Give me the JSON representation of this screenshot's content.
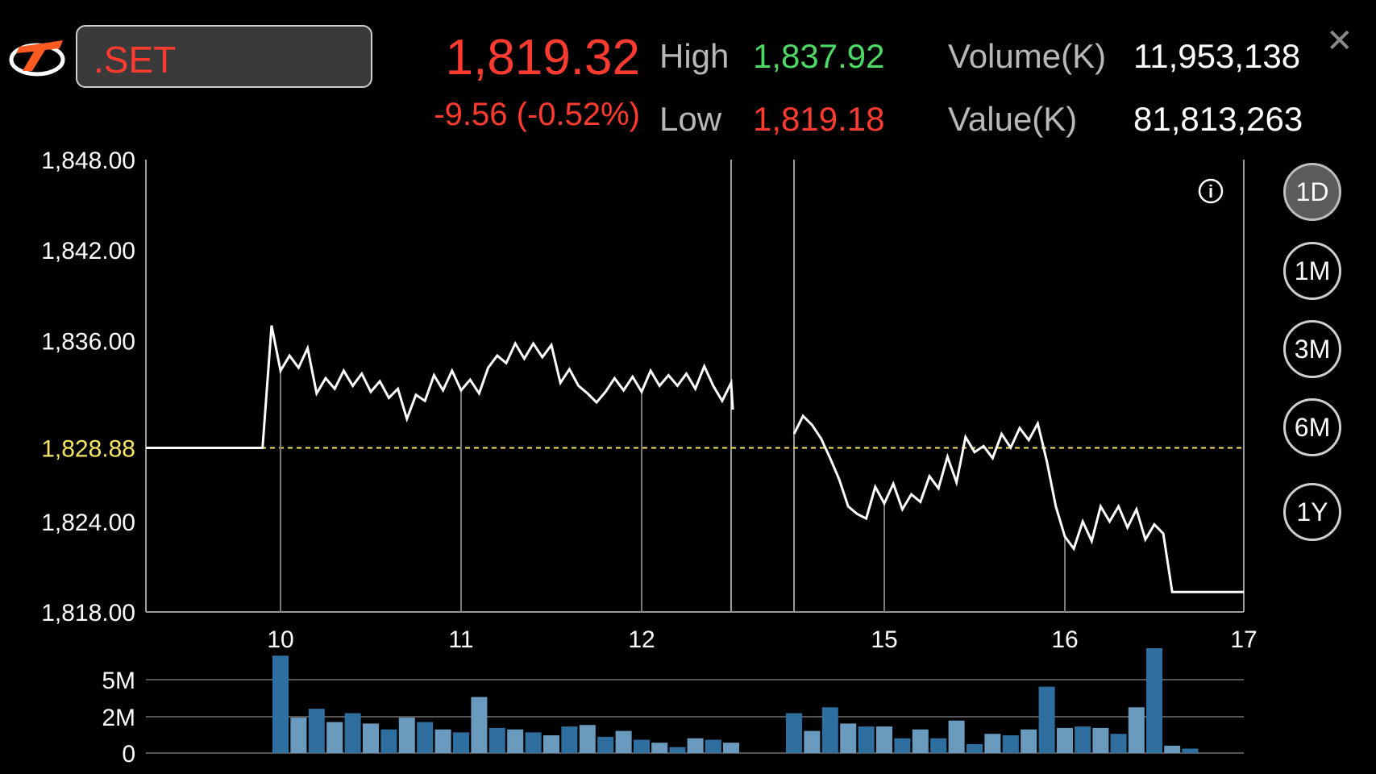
{
  "symbol": ".SET",
  "quote": {
    "last": "1,819.32",
    "change": "-9.56 (-0.52%)",
    "high_label": "High",
    "high": "1,837.92",
    "low_label": "Low",
    "low": "1,819.18",
    "volume_label": "Volume(K)",
    "volume": "11,953,138",
    "value_label": "Value(K)",
    "value": "81,813,263"
  },
  "close_icon": "close-icon",
  "info_icon": "info-icon",
  "timeframes": [
    {
      "label": "1D",
      "active": true
    },
    {
      "label": "1M",
      "active": false
    },
    {
      "label": "3M",
      "active": false
    },
    {
      "label": "6M",
      "active": false
    },
    {
      "label": "1Y",
      "active": false
    }
  ],
  "colors": {
    "up": "#4cd964",
    "down": "#ff3b30",
    "prev_close": "#f5e663",
    "volume_bar": "#2f6f9f",
    "volume_bar_light": "#6a9bbf"
  },
  "chart_data": [
    {
      "type": "line",
      "title": "",
      "ylim": [
        1818,
        1848
      ],
      "y_ticks": [
        "1,848.00",
        "1,842.00",
        "1,836.00",
        "1,824.00",
        "1,818.00"
      ],
      "prev_close": 1828.88,
      "prev_close_label": "1,828.88",
      "x_ticks": [
        {
          "x": 10,
          "label": "10"
        },
        {
          "x": 11,
          "label": "11"
        },
        {
          "x": 12,
          "label": "12"
        },
        {
          "x": 15,
          "label": "15"
        },
        {
          "x": 16,
          "label": "16"
        },
        {
          "x": 17,
          "label": "17"
        }
      ],
      "sessions": [
        {
          "name": "morning",
          "points": [
            [
              9.25,
              1828.88
            ],
            [
              9.9,
              1828.88
            ],
            [
              9.95,
              1837.0
            ],
            [
              10.0,
              1834.0
            ],
            [
              10.05,
              1835.0
            ],
            [
              10.1,
              1834.2
            ],
            [
              10.15,
              1835.5
            ],
            [
              10.2,
              1832.5
            ],
            [
              10.25,
              1833.5
            ],
            [
              10.3,
              1832.8
            ],
            [
              10.35,
              1834.0
            ],
            [
              10.4,
              1833.0
            ],
            [
              10.45,
              1833.8
            ],
            [
              10.5,
              1832.6
            ],
            [
              10.55,
              1833.3
            ],
            [
              10.6,
              1832.2
            ],
            [
              10.65,
              1832.8
            ],
            [
              10.7,
              1830.8
            ],
            [
              10.75,
              1832.4
            ],
            [
              10.8,
              1832.0
            ],
            [
              10.85,
              1833.7
            ],
            [
              10.9,
              1832.7
            ],
            [
              10.95,
              1834.0
            ],
            [
              11.0,
              1832.7
            ],
            [
              11.05,
              1833.4
            ],
            [
              11.1,
              1832.5
            ],
            [
              11.15,
              1834.2
            ],
            [
              11.2,
              1835.0
            ],
            [
              11.25,
              1834.5
            ],
            [
              11.3,
              1835.8
            ],
            [
              11.35,
              1834.8
            ],
            [
              11.4,
              1835.8
            ],
            [
              11.45,
              1834.9
            ],
            [
              11.5,
              1835.7
            ],
            [
              11.55,
              1833.2
            ],
            [
              11.6,
              1834.1
            ],
            [
              11.65,
              1833.0
            ],
            [
              11.7,
              1832.5
            ],
            [
              11.75,
              1831.9
            ],
            [
              11.8,
              1832.6
            ],
            [
              11.85,
              1833.5
            ],
            [
              11.9,
              1832.7
            ],
            [
              11.95,
              1833.6
            ],
            [
              12.0,
              1832.6
            ],
            [
              12.05,
              1834.0
            ],
            [
              12.1,
              1833.0
            ],
            [
              12.15,
              1833.7
            ],
            [
              12.2,
              1833.0
            ],
            [
              12.25,
              1833.8
            ],
            [
              12.3,
              1832.8
            ],
            [
              12.35,
              1834.3
            ],
            [
              12.4,
              1833.0
            ],
            [
              12.45,
              1832.0
            ],
            [
              12.5,
              1833.2
            ],
            [
              12.55,
              1831.5
            ],
            [
              12.5,
              1831.5
            ]
          ]
        },
        {
          "name": "afternoon",
          "points": [
            [
              14.5,
              1829.8
            ],
            [
              14.55,
              1831.0
            ],
            [
              14.6,
              1830.4
            ],
            [
              14.65,
              1829.5
            ],
            [
              14.7,
              1828.2
            ],
            [
              14.75,
              1826.8
            ],
            [
              14.8,
              1825.0
            ],
            [
              14.85,
              1824.5
            ],
            [
              14.9,
              1824.2
            ],
            [
              14.95,
              1826.3
            ],
            [
              15.0,
              1825.2
            ],
            [
              15.05,
              1826.5
            ],
            [
              15.1,
              1824.8
            ],
            [
              15.15,
              1825.8
            ],
            [
              15.2,
              1825.3
            ],
            [
              15.25,
              1827.0
            ],
            [
              15.3,
              1826.2
            ],
            [
              15.35,
              1828.3
            ],
            [
              15.4,
              1826.6
            ],
            [
              15.45,
              1829.6
            ],
            [
              15.5,
              1828.6
            ],
            [
              15.55,
              1829.0
            ],
            [
              15.6,
              1828.2
            ],
            [
              15.65,
              1829.8
            ],
            [
              15.7,
              1828.9
            ],
            [
              15.75,
              1830.2
            ],
            [
              15.8,
              1829.4
            ],
            [
              15.85,
              1830.5
            ],
            [
              15.9,
              1828.0
            ],
            [
              15.95,
              1825.0
            ],
            [
              16.0,
              1823.0
            ],
            [
              16.05,
              1822.2
            ],
            [
              16.1,
              1824.0
            ],
            [
              16.15,
              1822.7
            ],
            [
              16.2,
              1825.0
            ],
            [
              16.25,
              1824.0
            ],
            [
              16.3,
              1825.0
            ],
            [
              16.35,
              1823.6
            ],
            [
              16.4,
              1824.8
            ],
            [
              16.45,
              1822.8
            ],
            [
              16.5,
              1823.8
            ],
            [
              16.55,
              1823.2
            ],
            [
              16.6,
              1819.32
            ],
            [
              16.85,
              1819.32
            ],
            [
              17.0,
              1819.32
            ]
          ]
        }
      ]
    },
    {
      "type": "bar",
      "title": "",
      "ylim": [
        0,
        6.5
      ],
      "y_ticks": [
        {
          "v": 5,
          "label": "5M"
        },
        {
          "v": 2,
          "label": "2M"
        },
        {
          "v": 0,
          "label": "0"
        }
      ],
      "bars": [
        [
          10.0,
          6.6,
          1
        ],
        [
          10.1,
          2.4,
          0
        ],
        [
          10.2,
          3.0,
          1
        ],
        [
          10.3,
          2.1,
          0
        ],
        [
          10.4,
          2.7,
          1
        ],
        [
          10.5,
          2.0,
          0
        ],
        [
          10.6,
          1.6,
          1
        ],
        [
          10.7,
          2.4,
          0
        ],
        [
          10.8,
          2.1,
          1
        ],
        [
          10.9,
          1.6,
          0
        ],
        [
          11.0,
          1.4,
          1
        ],
        [
          11.1,
          3.8,
          0
        ],
        [
          11.2,
          1.7,
          1
        ],
        [
          11.3,
          1.6,
          0
        ],
        [
          11.4,
          1.4,
          1
        ],
        [
          11.5,
          1.2,
          0
        ],
        [
          11.6,
          1.8,
          1
        ],
        [
          11.7,
          1.9,
          0
        ],
        [
          11.8,
          1.1,
          1
        ],
        [
          11.9,
          1.5,
          0
        ],
        [
          12.0,
          0.9,
          1
        ],
        [
          12.1,
          0.7,
          0
        ],
        [
          12.2,
          0.4,
          1
        ],
        [
          12.3,
          1.0,
          0
        ],
        [
          12.4,
          0.9,
          1
        ],
        [
          12.5,
          0.7,
          0
        ],
        [
          14.5,
          2.7,
          1
        ],
        [
          14.6,
          1.5,
          0
        ],
        [
          14.7,
          3.1,
          1
        ],
        [
          14.8,
          2.0,
          0
        ],
        [
          14.9,
          1.8,
          1
        ],
        [
          15.0,
          1.8,
          0
        ],
        [
          15.1,
          1.0,
          1
        ],
        [
          15.2,
          1.6,
          0
        ],
        [
          15.3,
          1.0,
          1
        ],
        [
          15.4,
          2.2,
          0
        ],
        [
          15.5,
          0.6,
          1
        ],
        [
          15.6,
          1.3,
          0
        ],
        [
          15.7,
          1.2,
          1
        ],
        [
          15.8,
          1.6,
          0
        ],
        [
          15.9,
          4.5,
          1
        ],
        [
          16.0,
          1.7,
          0
        ],
        [
          16.1,
          1.8,
          1
        ],
        [
          16.2,
          1.7,
          0
        ],
        [
          16.3,
          1.3,
          1
        ],
        [
          16.4,
          3.1,
          0
        ],
        [
          16.5,
          7.1,
          1
        ],
        [
          16.6,
          0.5,
          0
        ],
        [
          16.7,
          0.3,
          1
        ]
      ]
    }
  ]
}
